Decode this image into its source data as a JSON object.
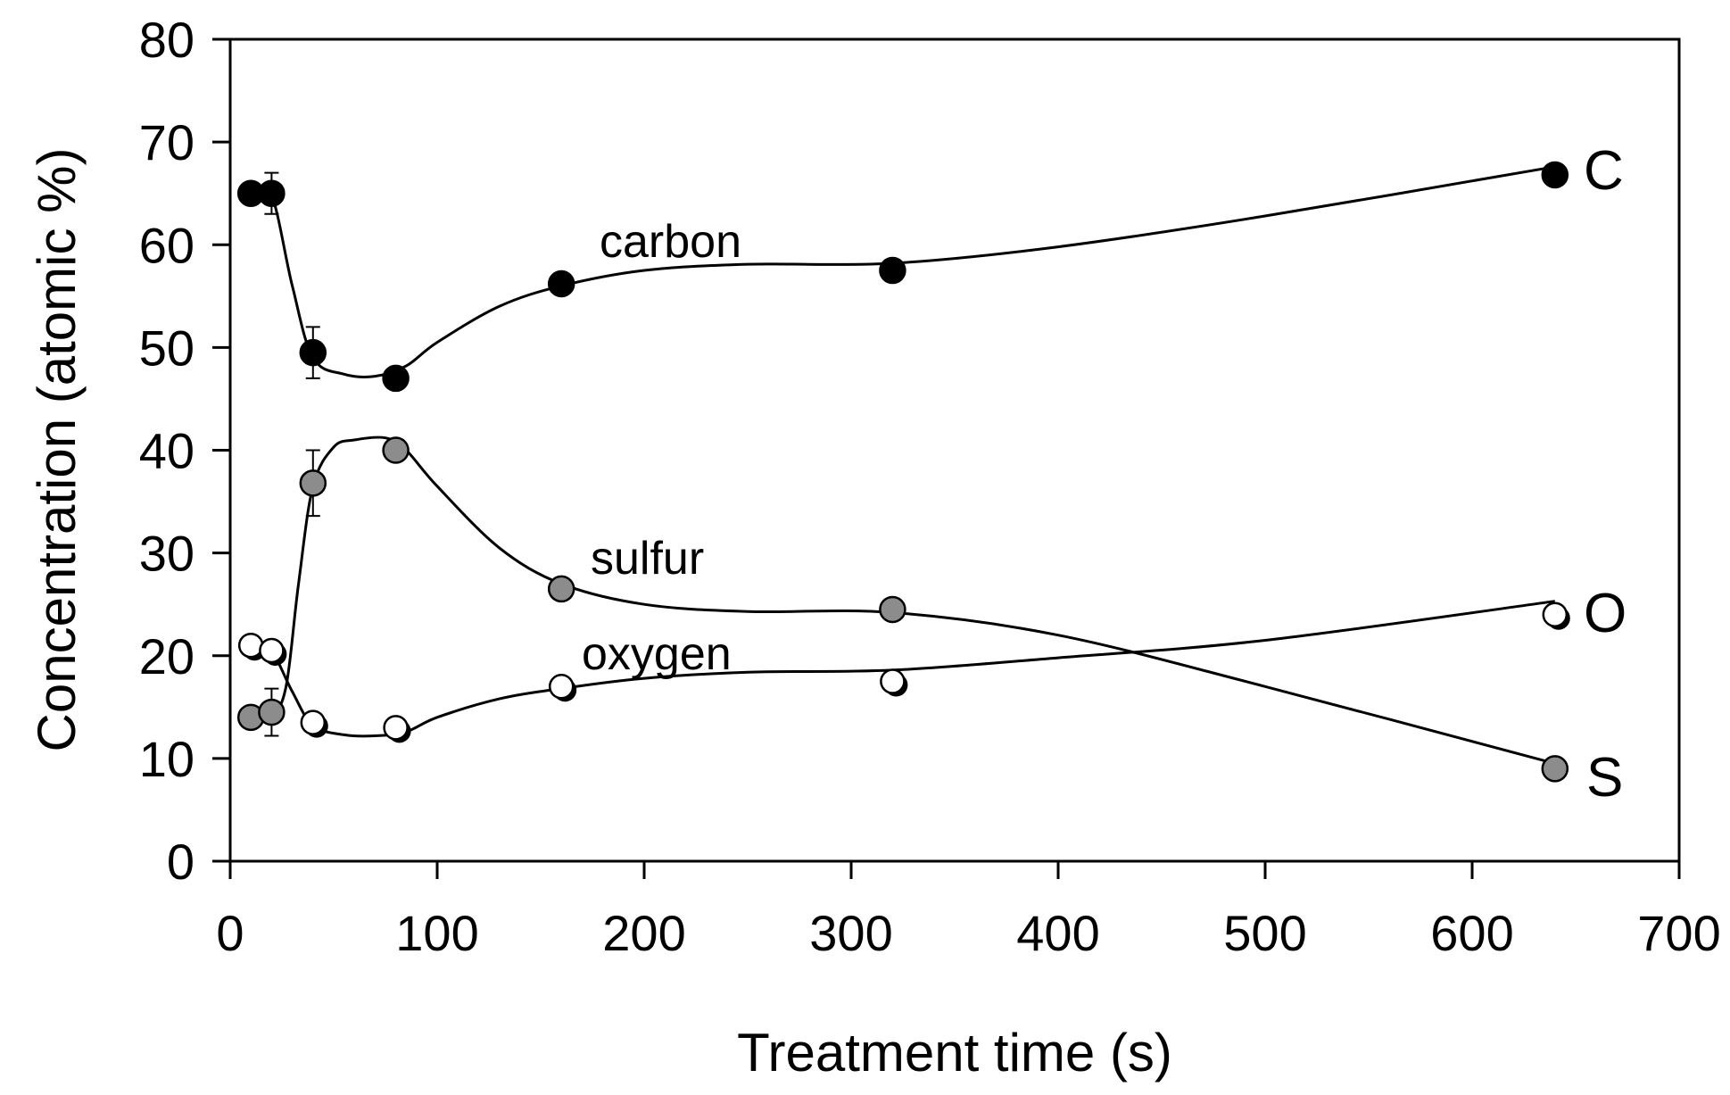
{
  "chart_data": {
    "type": "scatter",
    "title": "",
    "xlabel": "Treatment time (s)",
    "ylabel": "Concentration (atomic %)",
    "xlim": [
      0,
      700
    ],
    "ylim": [
      0,
      80
    ],
    "x_ticks": [
      0,
      100,
      200,
      300,
      400,
      500,
      600,
      700
    ],
    "y_ticks": [
      0,
      10,
      20,
      30,
      40,
      50,
      60,
      70,
      80
    ],
    "grid": false,
    "series": [
      {
        "name": "carbon",
        "end_label": "C",
        "marker": "filled-black",
        "color": "#000000",
        "x": [
          10,
          20,
          40,
          80,
          160,
          320,
          640
        ],
        "values": [
          65.0,
          65.0,
          49.5,
          47.0,
          56.2,
          57.5,
          66.8
        ],
        "error": [
          0.8,
          2.0,
          2.5,
          0.8,
          0.8,
          0.8,
          0.8
        ],
        "fit_x": [
          10,
          20,
          30,
          40,
          55,
          70,
          85,
          100,
          130,
          160,
          200,
          250,
          320,
          400,
          500,
          640
        ],
        "fit_y": [
          65.0,
          64.8,
          56.0,
          49.0,
          47.4,
          47.2,
          48.2,
          50.5,
          54.0,
          56.0,
          57.5,
          58.1,
          58.2,
          59.8,
          62.8,
          67.6
        ]
      },
      {
        "name": "sulfur",
        "end_label": "S",
        "marker": "filled-gray",
        "color": "#8c8c8c",
        "x": [
          10,
          20,
          40,
          80,
          160,
          320,
          640
        ],
        "values": [
          14.0,
          14.5,
          36.8,
          40.0,
          26.5,
          24.5,
          9.0
        ],
        "error": [
          0.8,
          2.3,
          3.2,
          0.8,
          0.8,
          0.8,
          0.8
        ],
        "fit_x": [
          10,
          20,
          27,
          33,
          40,
          50,
          60,
          75,
          85,
          100,
          130,
          160,
          200,
          250,
          320,
          400,
          500,
          640
        ],
        "fit_y": [
          14.0,
          14.2,
          17.0,
          27.0,
          36.5,
          40.3,
          41.0,
          41.2,
          40.0,
          36.5,
          30.5,
          27.0,
          25.0,
          24.3,
          24.2,
          22.0,
          17.0,
          9.5
        ]
      },
      {
        "name": "oxygen",
        "end_label": "O",
        "marker": "open-white",
        "color": "#ffffff",
        "x": [
          10,
          20,
          40,
          80,
          160,
          320,
          640
        ],
        "values": [
          21.0,
          20.5,
          13.5,
          13.0,
          17.0,
          17.5,
          24.0
        ],
        "error": [
          0.5,
          0.5,
          0.5,
          0.5,
          0.5,
          0.5,
          0.5
        ],
        "fit_x": [
          10,
          20,
          30,
          40,
          55,
          70,
          85,
          100,
          130,
          160,
          200,
          250,
          320,
          400,
          500,
          640
        ],
        "fit_y": [
          21.0,
          20.4,
          16.5,
          13.2,
          12.3,
          12.2,
          12.6,
          14.0,
          15.8,
          16.8,
          17.8,
          18.4,
          18.6,
          19.8,
          21.5,
          25.3
        ]
      }
    ]
  }
}
